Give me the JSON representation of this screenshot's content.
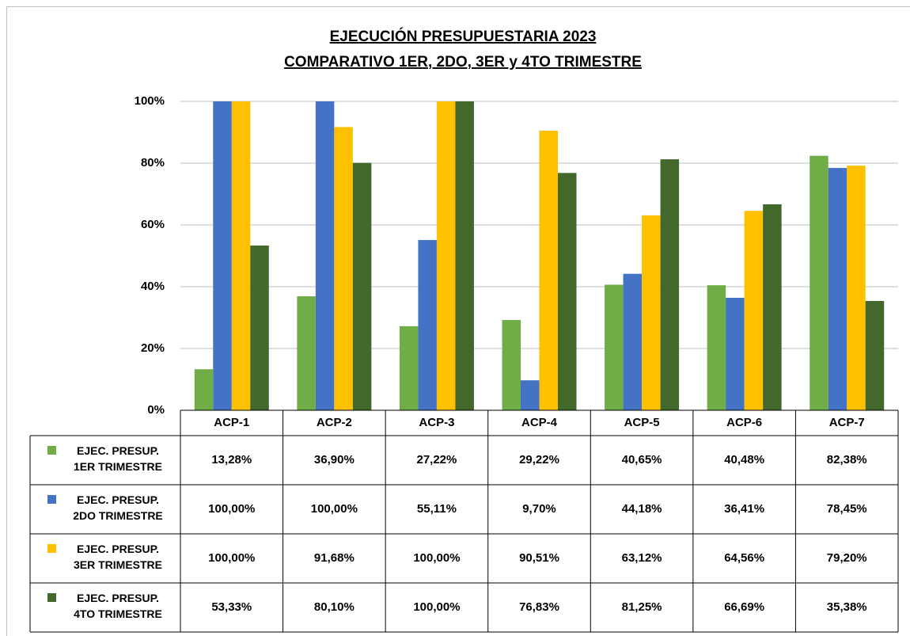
{
  "chart_data": {
    "type": "bar",
    "title": "EJECUCIÓN PRESUPUESTARIA 2023",
    "subtitle": "COMPARATIVO 1ER, 2DO, 3ER y 4TO TRIMESTRE",
    "categories": [
      "ACP-1",
      "ACP-2",
      "ACP-3",
      "ACP-4",
      "ACP-5",
      "ACP-6",
      "ACP-7"
    ],
    "series": [
      {
        "name": "EJEC. PRESUP.\n1ER TRIMESTRE",
        "color": "#70ad47",
        "values": [
          13.28,
          36.9,
          27.22,
          29.22,
          40.65,
          40.48,
          82.38
        ],
        "value_labels": [
          "13,28%",
          "36,90%",
          "27,22%",
          "29,22%",
          "40,65%",
          "40,48%",
          "82,38%"
        ]
      },
      {
        "name": "EJEC. PRESUP.\n2DO TRIMESTRE",
        "color": "#4472c4",
        "values": [
          100.0,
          100.0,
          55.11,
          9.7,
          44.18,
          36.41,
          78.45
        ],
        "value_labels": [
          "100,00%",
          "100,00%",
          "55,11%",
          "9,70%",
          "44,18%",
          "36,41%",
          "78,45%"
        ]
      },
      {
        "name": "EJEC. PRESUP.\n3ER TRIMESTRE",
        "color": "#ffc000",
        "values": [
          100.0,
          91.68,
          100.0,
          90.51,
          63.12,
          64.56,
          79.2
        ],
        "value_labels": [
          "100,00%",
          "91,68%",
          "100,00%",
          "90,51%",
          "63,12%",
          "64,56%",
          "79,20%"
        ]
      },
      {
        "name": "EJEC. PRESUP.\n4TO TRIMESTRE",
        "color": "#43682b",
        "values": [
          53.33,
          80.1,
          100.0,
          76.83,
          81.25,
          66.69,
          35.38
        ],
        "value_labels": [
          "53,33%",
          "80,10%",
          "100,00%",
          "76,83%",
          "81,25%",
          "66,69%",
          "35,38%"
        ]
      }
    ],
    "ylim": [
      0,
      100
    ],
    "yticks": [
      {
        "value": 0,
        "label": "0%"
      },
      {
        "value": 20,
        "label": "20%"
      },
      {
        "value": 40,
        "label": "40%"
      },
      {
        "value": 60,
        "label": "60%"
      },
      {
        "value": 80,
        "label": "80%"
      },
      {
        "value": 100,
        "label": "100%"
      }
    ],
    "grid": true
  }
}
